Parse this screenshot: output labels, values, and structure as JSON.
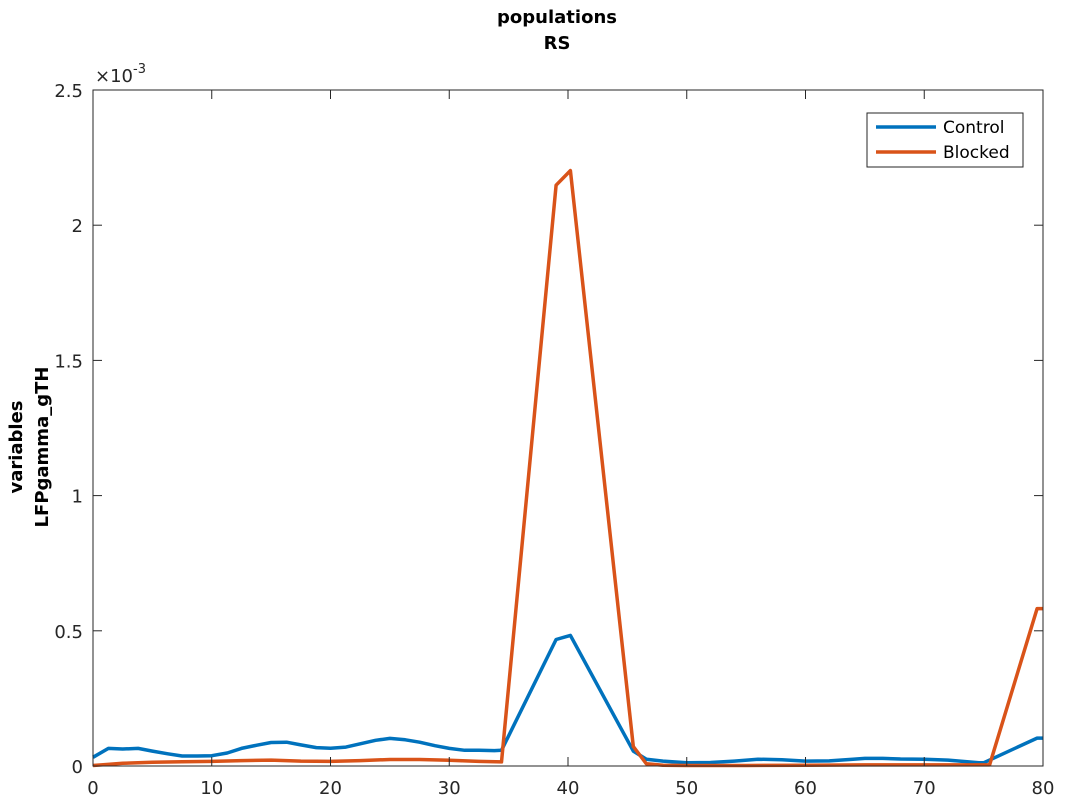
{
  "chart_data": {
    "type": "line",
    "title": [
      "populations",
      "RS"
    ],
    "ylabel": [
      "variables",
      "LFPgamma_gTH"
    ],
    "xlabel": "",
    "xlim": [
      0,
      80
    ],
    "ylim": [
      0,
      0.0025
    ],
    "exponent_label": "×10",
    "exponent_power": "-3",
    "xticks": [
      0,
      10,
      20,
      30,
      40,
      50,
      60,
      70,
      80
    ],
    "xtick_labels": [
      "0",
      "10",
      "20",
      "30",
      "40",
      "50",
      "60",
      "70",
      "80"
    ],
    "yticks": [
      0,
      0.0005,
      0.001,
      0.0015,
      0.002,
      0.0025
    ],
    "ytick_labels": [
      "0",
      "0.5",
      "1",
      "1.5",
      "2",
      "2.5"
    ],
    "grid": false,
    "legend_position": "top-right",
    "series": [
      {
        "name": "Control",
        "color": "#0072BD",
        "x": [
          0,
          1.3,
          2.5,
          3.8,
          5,
          6.3,
          7.5,
          8.8,
          10,
          11.3,
          12.5,
          13.8,
          15,
          16.3,
          17.5,
          18.8,
          20,
          21.3,
          22.5,
          23.8,
          25,
          26.3,
          27.5,
          28.8,
          30,
          31.3,
          32.5,
          33.8,
          34.4,
          39,
          40.2,
          45.5,
          46.6,
          48,
          50,
          52,
          54,
          56,
          58,
          60,
          62,
          64,
          65,
          66.5,
          68,
          70,
          72,
          74.6,
          75,
          79.5,
          80
        ],
        "y": [
          3.2e-05,
          6.5e-05,
          6.3e-05,
          6.5e-05,
          5.5e-05,
          4.5e-05,
          3.7e-05,
          3.7e-05,
          3.8e-05,
          4.8e-05,
          6.5e-05,
          7.7e-05,
          8.7e-05,
          8.8e-05,
          7.8e-05,
          6.8e-05,
          6.6e-05,
          7e-05,
          8.2e-05,
          9.5e-05,
          0.000102,
          9.7e-05,
          8.8e-05,
          7.5e-05,
          6.5e-05,
          5.8e-05,
          5.8e-05,
          5.7e-05,
          5.8e-05,
          0.000468,
          0.000483,
          5.5e-05,
          2.5e-05,
          1.8e-05,
          1.2e-05,
          1.3e-05,
          1.8e-05,
          2.5e-05,
          2.3e-05,
          1.8e-05,
          1.9e-05,
          2.5e-05,
          2.8e-05,
          2.8e-05,
          2.6e-05,
          2.5e-05,
          2.2e-05,
          1.2e-05,
          1.2e-05,
          0.000103,
          0.000103
        ]
      },
      {
        "name": "Blocked",
        "color": "#D95319",
        "x": [
          0,
          2.5,
          5,
          7.5,
          10,
          12.5,
          15,
          17.5,
          20,
          22.5,
          25,
          27.5,
          30,
          32.5,
          34.4,
          39,
          40.2,
          45.5,
          46.6,
          48,
          50,
          55,
          60,
          65,
          70,
          74.6,
          75.5,
          79.5,
          80
        ],
        "y": [
          2e-06,
          1e-05,
          1.4e-05,
          1.6e-05,
          1.7e-05,
          2e-05,
          2.2e-05,
          1.8e-05,
          1.7e-05,
          2e-05,
          2.4e-05,
          2.4e-05,
          2.1e-05,
          1.7e-05,
          1.5e-05,
          0.002148,
          0.002202,
          7.2e-05,
          8e-06,
          3e-06,
          2e-06,
          2e-06,
          3e-06,
          4e-06,
          4e-06,
          4e-06,
          4e-06,
          0.000582,
          0.000582
        ]
      }
    ]
  }
}
